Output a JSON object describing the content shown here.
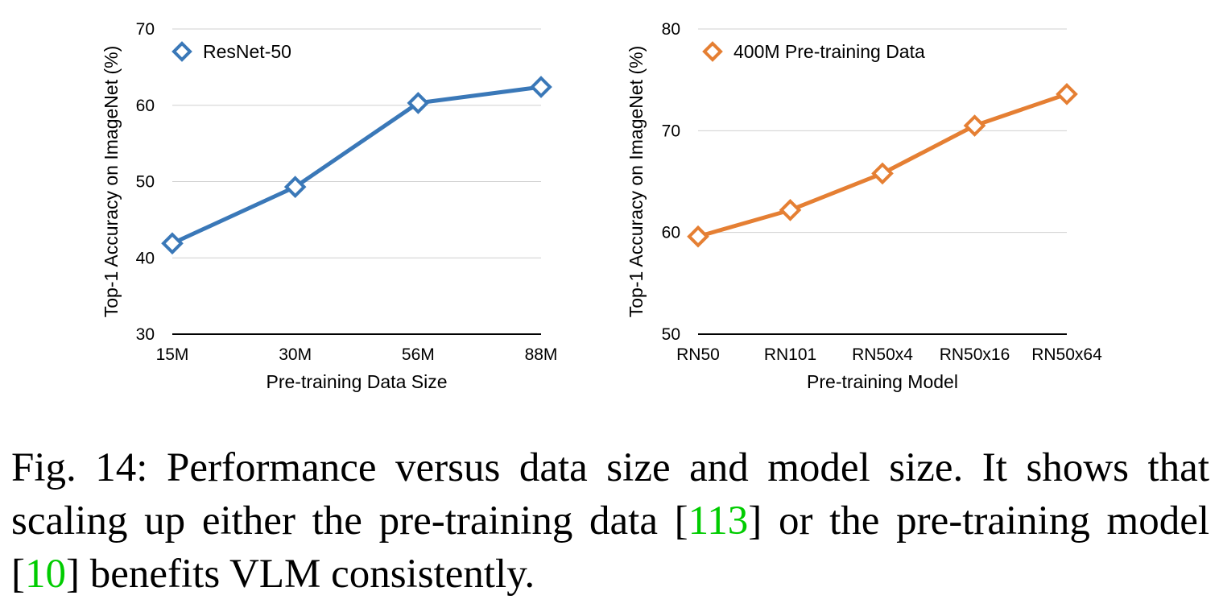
{
  "chart_data": [
    {
      "type": "line",
      "xlabel": "Pre-training Data Size",
      "ylabel": "Top-1 Accuracy on ImageNet (%)",
      "categories": [
        "15M",
        "30M",
        "56M",
        "88M"
      ],
      "yticks": [
        "30",
        "40",
        "50",
        "60",
        "70"
      ],
      "ylim": [
        30,
        70
      ],
      "grid": true,
      "legend_position": "top-left",
      "series": [
        {
          "name": "ResNet-50",
          "values": [
            41.9,
            49.3,
            60.3,
            62.4
          ],
          "color": "#3a78b8",
          "marker": "diamond-open"
        }
      ]
    },
    {
      "type": "line",
      "xlabel": "Pre-training Model",
      "ylabel": "Top-1 Accuracy on ImageNet (%)",
      "categories": [
        "RN50",
        "RN101",
        "RN50x4",
        "RN50x16",
        "RN50x64"
      ],
      "yticks": [
        "50",
        "60",
        "70",
        "80"
      ],
      "ylim": [
        50,
        80
      ],
      "grid": true,
      "legend_position": "top-left",
      "series": [
        {
          "name": "400M Pre-training Data",
          "values": [
            59.6,
            62.2,
            65.8,
            70.5,
            73.6
          ],
          "color": "#e57f33",
          "marker": "diamond-open"
        }
      ]
    }
  ],
  "caption": {
    "label": "Fig. 14:",
    "text_1": "Performance versus data size and model size. It shows that scaling up either the pre-training data [",
    "ref_1": "113",
    "text_2": "] or the pre-training model [",
    "ref_2": "10",
    "text_3": "] benefits VLM consistently."
  },
  "colors": {
    "series_blue": "#3a78b8",
    "series_orange": "#e57f33",
    "reference_link": "#00cc00",
    "gridline": "#d0d0d0"
  }
}
